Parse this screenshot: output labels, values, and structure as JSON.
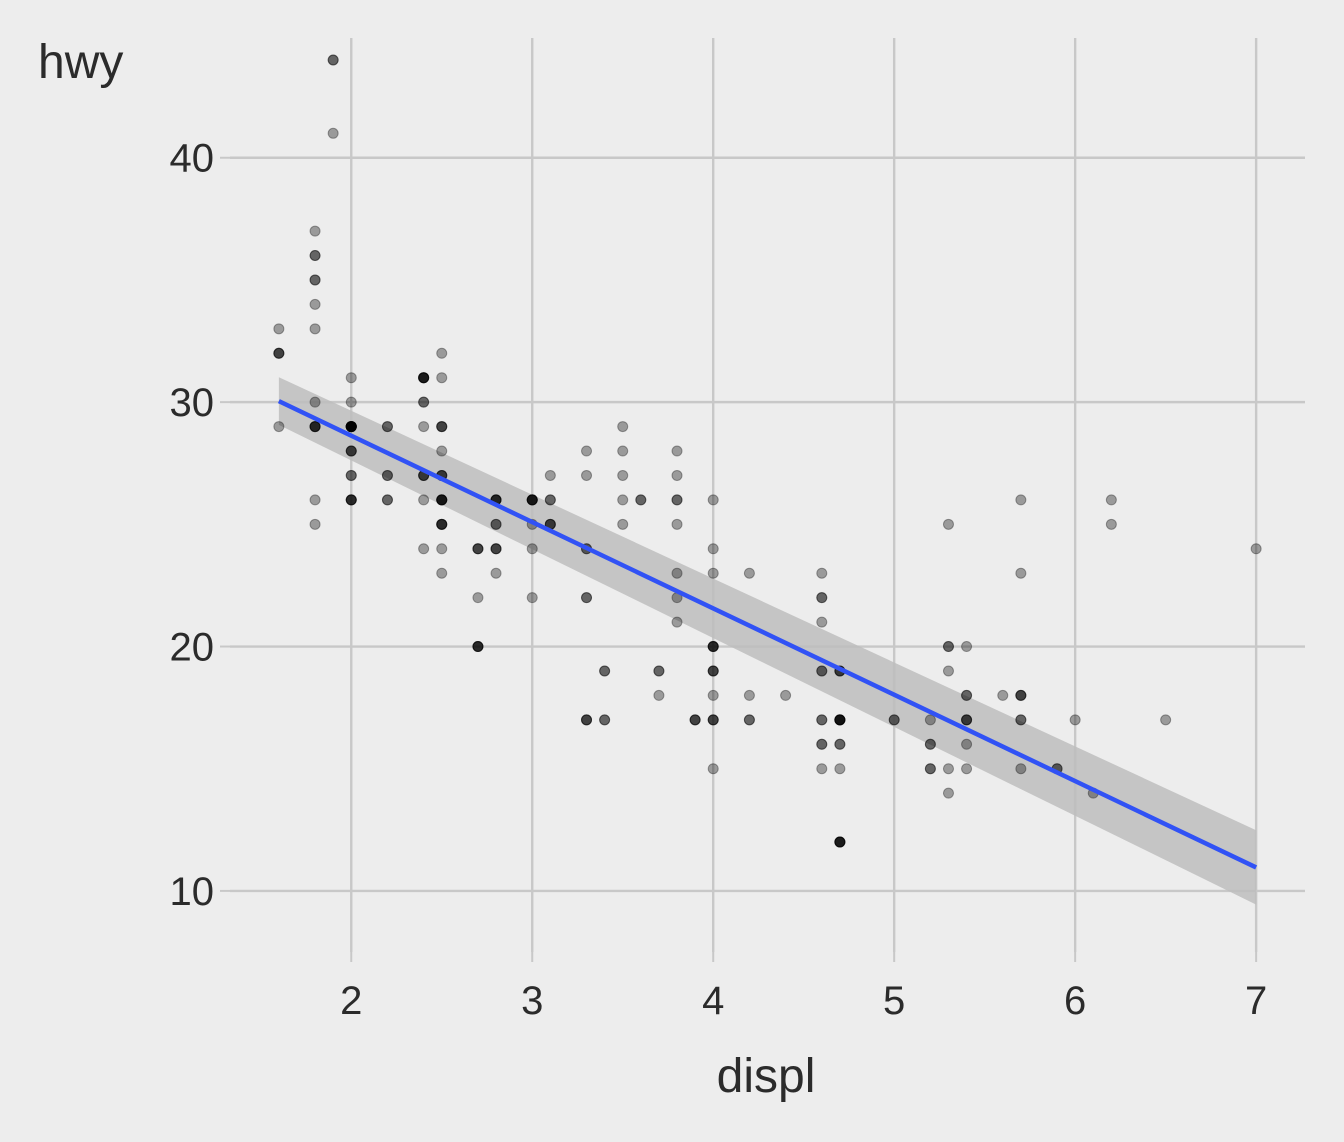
{
  "chart_data": {
    "type": "scatter",
    "title": "",
    "xlabel": "displ",
    "ylabel": "hwy",
    "xlim": [
      1.33,
      7.27
    ],
    "ylim": [
      7.5,
      44.9
    ],
    "x_ticks": [
      2,
      3,
      4,
      5,
      6,
      7
    ],
    "x_tick_labels": [
      "2",
      "3",
      "4",
      "5",
      "6",
      "7"
    ],
    "y_ticks": [
      10,
      20,
      30,
      40
    ],
    "y_tick_labels": [
      "10",
      "20",
      "30",
      "40"
    ],
    "grid": true,
    "colors": {
      "background": "#ededed",
      "grid": "#c8c8c8",
      "points": "#000000",
      "fit_line": "#3152f5",
      "confidence_band": "#bdbdbd"
    },
    "series": [
      {
        "type": "scatter",
        "x": [
          1.8,
          1.8,
          2.0,
          2.0,
          2.8,
          2.8,
          3.1,
          1.8,
          1.8,
          2.0,
          2.0,
          2.8,
          2.8,
          3.1,
          3.1,
          2.8,
          3.1,
          4.2,
          5.3,
          5.3,
          5.3,
          5.7,
          6.0,
          5.7,
          5.7,
          6.2,
          6.2,
          7.0,
          5.3,
          5.3,
          5.7,
          6.5,
          2.4,
          2.4,
          3.1,
          3.5,
          3.6,
          2.4,
          3.0,
          3.3,
          3.3,
          3.3,
          3.3,
          3.3,
          3.8,
          3.8,
          3.8,
          4.0,
          3.7,
          3.7,
          3.9,
          3.9,
          4.7,
          4.7,
          4.7,
          5.2,
          5.2,
          3.9,
          4.7,
          4.7,
          4.7,
          5.2,
          5.7,
          5.9,
          4.7,
          4.7,
          4.7,
          4.7,
          4.7,
          4.7,
          5.2,
          5.2,
          5.7,
          5.9,
          4.6,
          5.4,
          5.4,
          4.0,
          4.0,
          4.0,
          4.0,
          4.6,
          5.0,
          4.2,
          4.2,
          4.6,
          4.6,
          4.6,
          5.4,
          5.4,
          3.8,
          3.8,
          4.0,
          4.0,
          4.6,
          4.6,
          4.6,
          4.6,
          5.4,
          1.6,
          1.6,
          1.6,
          1.6,
          1.6,
          1.8,
          1.8,
          1.8,
          2.0,
          2.4,
          2.4,
          2.4,
          2.4,
          2.5,
          2.5,
          3.3,
          2.0,
          2.0,
          2.0,
          2.0,
          2.7,
          2.7,
          2.7,
          3.0,
          3.7,
          4.0,
          4.7,
          4.7,
          4.7,
          5.7,
          6.1,
          4.0,
          4.2,
          4.4,
          4.6,
          5.4,
          5.4,
          5.4,
          4.0,
          4.0,
          4.6,
          5.0,
          2.4,
          2.4,
          2.5,
          2.5,
          3.5,
          3.5,
          3.0,
          3.0,
          3.5,
          3.3,
          3.3,
          4.0,
          5.6,
          3.1,
          3.8,
          3.8,
          3.8,
          5.3,
          2.5,
          2.5,
          2.5,
          2.5,
          2.5,
          2.5,
          2.2,
          2.2,
          2.5,
          2.5,
          2.5,
          2.5,
          2.5,
          2.5,
          2.7,
          2.7,
          3.4,
          3.4,
          4.0,
          4.7,
          2.2,
          2.2,
          2.4,
          2.4,
          3.0,
          3.0,
          3.5,
          2.2,
          2.2,
          2.4,
          2.4,
          3.0,
          3.0,
          3.3,
          1.8,
          1.8,
          1.8,
          1.8,
          1.8,
          4.7,
          5.7,
          2.7,
          2.7,
          2.7,
          3.4,
          3.4,
          4.0,
          4.0,
          2.0,
          2.0,
          2.0,
          2.0,
          2.8,
          1.9,
          2.0,
          2.0,
          2.0,
          2.0,
          2.5,
          2.5,
          2.8,
          2.8,
          1.9,
          1.9,
          2.0,
          2.0,
          2.5,
          2.5,
          1.8,
          1.8,
          2.0,
          2.0,
          2.8,
          2.8,
          3.6
        ],
        "y": [
          29,
          29,
          31,
          30,
          26,
          26,
          27,
          26,
          25,
          28,
          27,
          25,
          25,
          25,
          25,
          24,
          25,
          23,
          20,
          15,
          20,
          17,
          17,
          26,
          23,
          26,
          25,
          24,
          19,
          14,
          15,
          17,
          27,
          30,
          26,
          29,
          26,
          24,
          24,
          22,
          22,
          24,
          24,
          17,
          22,
          21,
          23,
          23,
          19,
          18,
          17,
          17,
          19,
          19,
          12,
          17,
          15,
          17,
          17,
          12,
          17,
          16,
          18,
          15,
          16,
          12,
          17,
          17,
          16,
          12,
          15,
          16,
          17,
          15,
          17,
          17,
          18,
          17,
          19,
          17,
          19,
          19,
          17,
          17,
          17,
          16,
          16,
          17,
          15,
          17,
          26,
          25,
          26,
          24,
          21,
          22,
          23,
          22,
          20,
          33,
          32,
          32,
          29,
          32,
          34,
          36,
          36,
          29,
          26,
          27,
          30,
          31,
          26,
          26,
          28,
          26,
          29,
          28,
          27,
          24,
          24,
          24,
          22,
          19,
          20,
          17,
          12,
          19,
          18,
          14,
          15,
          18,
          18,
          15,
          17,
          16,
          18,
          17,
          19,
          19,
          17,
          29,
          27,
          31,
          32,
          27,
          26,
          26,
          25,
          25,
          17,
          17,
          20,
          18,
          26,
          26,
          27,
          28,
          25,
          25,
          24,
          27,
          25,
          26,
          23,
          26,
          26,
          26,
          26,
          25,
          27,
          25,
          27,
          20,
          20,
          19,
          17,
          20,
          17,
          29,
          27,
          31,
          31,
          26,
          26,
          28,
          27,
          29,
          31,
          31,
          26,
          26,
          27,
          30,
          33,
          35,
          37,
          35,
          15,
          18,
          20,
          20,
          22,
          17,
          19,
          18,
          20,
          29,
          26,
          29,
          29,
          24,
          44,
          29,
          26,
          29,
          29,
          29,
          29,
          23,
          24,
          44,
          41,
          29,
          26,
          28,
          29,
          29,
          29,
          28,
          29,
          26,
          26,
          26
        ]
      },
      {
        "type": "line",
        "name": "",
        "x": [
          1.6,
          7.0
        ],
        "y": [
          30.04,
          10.96
        ],
        "band_lower": [
          29.07,
          9.44
        ],
        "band_upper": [
          31.02,
          12.48
        ]
      }
    ]
  }
}
